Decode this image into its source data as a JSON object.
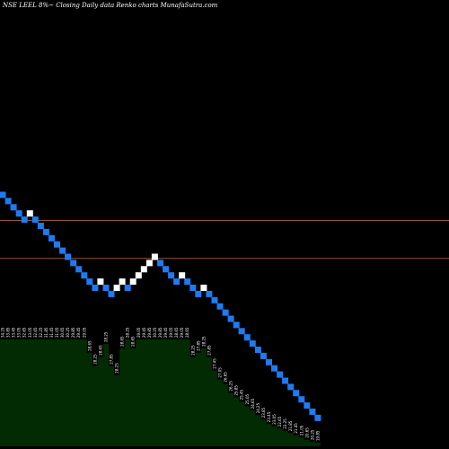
{
  "chart_data": {
    "type": "renko",
    "title": "NSE LEEL  8%~  Closing Daily data  Renko  charts MunafaSutra.com",
    "colors": {
      "background": "#000000",
      "up_brick": "#ffffff",
      "down_brick": "#1e7bf2",
      "reference_line": "#9a5428",
      "volume_fill": "#032b03",
      "label_text": "#ffffff"
    },
    "reference_levels": [
      32.6,
      30.15
    ],
    "bricks": [
      {
        "dir": "down",
        "value": 34.25
      },
      {
        "dir": "down",
        "value": 33.85
      },
      {
        "dir": "down",
        "value": 33.45
      },
      {
        "dir": "down",
        "value": 33.05
      },
      {
        "dir": "down",
        "value": 32.65
      },
      {
        "dir": "up",
        "value": 33.05
      },
      {
        "dir": "down",
        "value": 32.65
      },
      {
        "dir": "down",
        "value": 32.25
      },
      {
        "dir": "down",
        "value": 31.85
      },
      {
        "dir": "down",
        "value": 31.45
      },
      {
        "dir": "down",
        "value": 31.05
      },
      {
        "dir": "down",
        "value": 30.65
      },
      {
        "dir": "down",
        "value": 30.25
      },
      {
        "dir": "down",
        "value": 29.85
      },
      {
        "dir": "down",
        "value": 29.45
      },
      {
        "dir": "down",
        "value": 29.05
      },
      {
        "dir": "down",
        "value": 28.65
      },
      {
        "dir": "down",
        "value": 28.25
      },
      {
        "dir": "up",
        "value": 28.65
      },
      {
        "dir": "down",
        "value": 28.25
      },
      {
        "dir": "down",
        "value": 27.85
      },
      {
        "dir": "up",
        "value": 28.25
      },
      {
        "dir": "up",
        "value": 28.65
      },
      {
        "dir": "down",
        "value": 28.25
      },
      {
        "dir": "up",
        "value": 28.65
      },
      {
        "dir": "up",
        "value": 29.05
      },
      {
        "dir": "up",
        "value": 29.45
      },
      {
        "dir": "up",
        "value": 29.85
      },
      {
        "dir": "up",
        "value": 30.25
      },
      {
        "dir": "down",
        "value": 29.85
      },
      {
        "dir": "down",
        "value": 29.45
      },
      {
        "dir": "down",
        "value": 29.05
      },
      {
        "dir": "down",
        "value": 28.65
      },
      {
        "dir": "up",
        "value": 29.05
      },
      {
        "dir": "down",
        "value": 28.65
      },
      {
        "dir": "down",
        "value": 28.25
      },
      {
        "dir": "down",
        "value": 27.85
      },
      {
        "dir": "up",
        "value": 28.25
      },
      {
        "dir": "down",
        "value": 27.85
      },
      {
        "dir": "down",
        "value": 27.45
      },
      {
        "dir": "down",
        "value": 27.05
      },
      {
        "dir": "down",
        "value": 26.65
      },
      {
        "dir": "down",
        "value": 26.25
      },
      {
        "dir": "down",
        "value": 25.85
      },
      {
        "dir": "down",
        "value": 25.45
      },
      {
        "dir": "down",
        "value": 25.05
      },
      {
        "dir": "down",
        "value": 24.65
      },
      {
        "dir": "down",
        "value": 24.25
      },
      {
        "dir": "down",
        "value": 23.85
      },
      {
        "dir": "down",
        "value": 23.45
      },
      {
        "dir": "down",
        "value": 23.05
      },
      {
        "dir": "down",
        "value": 22.65
      },
      {
        "dir": "down",
        "value": 22.25
      },
      {
        "dir": "down",
        "value": 21.85
      },
      {
        "dir": "down",
        "value": 21.45
      },
      {
        "dir": "down",
        "value": 21.05
      },
      {
        "dir": "down",
        "value": 20.65
      },
      {
        "dir": "down",
        "value": 20.25
      },
      {
        "dir": "down",
        "value": 19.85
      }
    ],
    "volume_levels": [
      0.24,
      0.24,
      0.24,
      0.24,
      0.24,
      0.24,
      0.24,
      0.24,
      0.24,
      0.24,
      0.24,
      0.24,
      0.24,
      0.24,
      0.24,
      0.24,
      0.21,
      0.18,
      0.2,
      0.23,
      0.18,
      0.16,
      0.22,
      0.24,
      0.22,
      0.24,
      0.24,
      0.24,
      0.24,
      0.24,
      0.24,
      0.24,
      0.24,
      0.24,
      0.24,
      0.2,
      0.21,
      0.22,
      0.2,
      0.17,
      0.15,
      0.14,
      0.12,
      0.11,
      0.1,
      0.09,
      0.08,
      0.07,
      0.06,
      0.05,
      0.045,
      0.04,
      0.035,
      0.03,
      0.025,
      0.02,
      0.015,
      0.01,
      0.008
    ],
    "value_labels": [
      "34.25",
      "33.85",
      "33.45",
      "33.05",
      "32.65",
      "33.05",
      "32.65",
      "32.25",
      "31.85",
      "31.45",
      "31.05",
      "30.65",
      "30.25",
      "29.85",
      "29.45",
      "29.05",
      "28.65",
      "28.25",
      "28.65",
      "28.25",
      "27.85",
      "28.25",
      "28.65",
      "28.25",
      "28.65",
      "29.05",
      "29.45",
      "29.85",
      "30.25",
      "29.85",
      "29.45",
      "29.05",
      "28.65",
      "29.05",
      "28.65",
      "28.25",
      "27.85",
      "28.25",
      "27.85",
      "27.45",
      "27.05",
      "26.65",
      "26.25",
      "25.85",
      "25.45",
      "25.05",
      "24.65",
      "24.25",
      "23.85",
      "23.45",
      "23.05",
      "22.65",
      "22.25",
      "21.85",
      "21.45",
      "21.05",
      "20.65",
      "20.25",
      "19.85"
    ]
  }
}
